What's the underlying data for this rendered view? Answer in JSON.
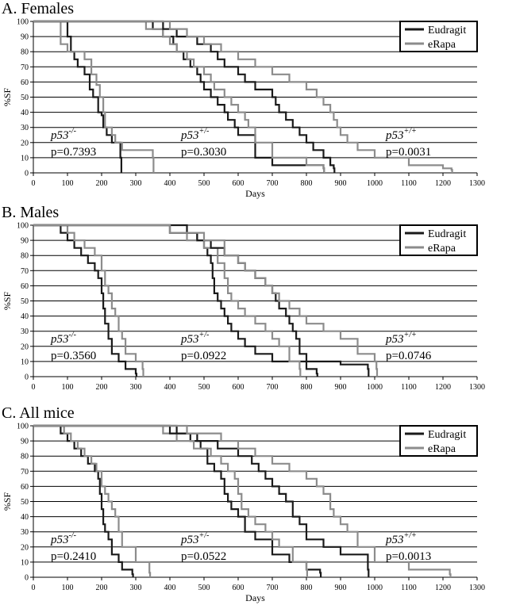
{
  "chart_data": [
    {
      "type": "line",
      "title": "A. Females",
      "xlabel": "Days",
      "ylabel": "%SF",
      "xlim": [
        0,
        1300
      ],
      "ylim": [
        0,
        100
      ],
      "xticks": [
        0,
        100,
        200,
        300,
        400,
        500,
        600,
        700,
        800,
        900,
        1000,
        1100,
        1200,
        1300
      ],
      "yticks": [
        0,
        10,
        20,
        30,
        40,
        50,
        60,
        70,
        80,
        90,
        100
      ],
      "grid": "horizontal",
      "legend_position": "top-right",
      "legend": [
        {
          "name": "Eudragit",
          "color": "#1a1a1a"
        },
        {
          "name": "eRapa",
          "color": "#8c8c8c"
        }
      ],
      "annotations": [
        {
          "genotype": "p53",
          "sup": "-/-",
          "pvalue": "p=0.7393"
        },
        {
          "genotype": "p53",
          "sup": "+/-",
          "pvalue": "p=0.3030"
        },
        {
          "genotype": "p53",
          "sup": "+/+",
          "pvalue": "p=0.0031"
        }
      ],
      "series": [
        {
          "name": "Eudragit",
          "group": "p53-/-",
          "x": [
            0,
            90,
            100,
            110,
            120,
            130,
            150,
            165,
            175,
            190,
            200,
            205,
            215,
            230,
            255,
            258
          ],
          "y": [
            100,
            100,
            90,
            80,
            75,
            70,
            65,
            55,
            50,
            40,
            38,
            30,
            25,
            20,
            10,
            0
          ]
        },
        {
          "name": "eRapa",
          "group": "p53-/-",
          "x": [
            0,
            70,
            80,
            100,
            150,
            170,
            185,
            195,
            205,
            210,
            230,
            240,
            260,
            300,
            350,
            352
          ],
          "y": [
            100,
            100,
            85,
            80,
            75,
            65,
            58,
            50,
            40,
            30,
            25,
            20,
            15,
            15,
            10,
            0
          ]
        },
        {
          "name": "Eudragit",
          "group": "p53+/-",
          "x": [
            0,
            300,
            350,
            380,
            410,
            420,
            440,
            460,
            480,
            490,
            500,
            520,
            540,
            560,
            570,
            590,
            600,
            650,
            700,
            850,
            852
          ],
          "y": [
            100,
            100,
            95,
            90,
            85,
            80,
            75,
            70,
            65,
            60,
            55,
            50,
            45,
            40,
            35,
            30,
            25,
            10,
            5,
            3,
            0
          ]
        },
        {
          "name": "eRapa",
          "group": "p53+/-",
          "x": [
            0,
            280,
            330,
            380,
            400,
            420,
            450,
            470,
            500,
            520,
            530,
            560,
            580,
            600,
            620,
            630,
            650,
            700,
            800,
            850,
            852
          ],
          "y": [
            100,
            100,
            95,
            90,
            85,
            80,
            75,
            70,
            65,
            60,
            55,
            50,
            45,
            40,
            35,
            30,
            20,
            10,
            5,
            3,
            0
          ]
        },
        {
          "name": "Eudragit",
          "group": "p53+/+",
          "x": [
            0,
            300,
            380,
            420,
            480,
            520,
            540,
            560,
            600,
            620,
            650,
            700,
            710,
            720,
            740,
            760,
            780,
            800,
            820,
            850,
            870,
            880,
            882
          ],
          "y": [
            100,
            100,
            95,
            90,
            85,
            80,
            75,
            70,
            65,
            60,
            55,
            50,
            45,
            40,
            35,
            30,
            25,
            20,
            15,
            10,
            5,
            3,
            0
          ]
        },
        {
          "name": "eRapa",
          "group": "p53+/+",
          "x": [
            0,
            350,
            400,
            450,
            500,
            550,
            600,
            650,
            700,
            750,
            800,
            830,
            850,
            870,
            880,
            890,
            900,
            920,
            950,
            1000,
            1100,
            1200,
            1225,
            1227
          ],
          "y": [
            100,
            100,
            95,
            90,
            85,
            80,
            75,
            70,
            65,
            60,
            55,
            50,
            45,
            40,
            35,
            30,
            25,
            20,
            15,
            10,
            5,
            3,
            2,
            0
          ]
        }
      ]
    },
    {
      "type": "line",
      "title": "B. Males",
      "xlabel": "",
      "ylabel": "%SF",
      "xlim": [
        0,
        1300
      ],
      "ylim": [
        0,
        100
      ],
      "xticks": [
        0,
        100,
        200,
        300,
        400,
        500,
        600,
        700,
        800,
        900,
        1000,
        1100,
        1200,
        1300
      ],
      "yticks": [
        0,
        10,
        20,
        30,
        40,
        50,
        60,
        70,
        80,
        90,
        100
      ],
      "grid": "horizontal",
      "legend_position": "top-right",
      "legend": [
        {
          "name": "Eudragit",
          "color": "#1a1a1a"
        },
        {
          "name": "eRapa",
          "color": "#8c8c8c"
        }
      ],
      "annotations": [
        {
          "genotype": "p53",
          "sup": "-/-",
          "pvalue": "p=0.3560"
        },
        {
          "genotype": "p53",
          "sup": "+/-",
          "pvalue": "p=0.0922"
        },
        {
          "genotype": "p53",
          "sup": "+/+",
          "pvalue": "p=0.0746"
        }
      ],
      "series": [
        {
          "name": "Eudragit",
          "group": "p53-/-",
          "x": [
            0,
            50,
            80,
            100,
            120,
            140,
            160,
            180,
            190,
            200,
            205,
            210,
            220,
            230,
            250,
            270,
            300,
            302
          ],
          "y": [
            100,
            100,
            95,
            90,
            85,
            80,
            75,
            70,
            65,
            55,
            45,
            35,
            25,
            15,
            10,
            5,
            2,
            0
          ]
        },
        {
          "name": "eRapa",
          "group": "p53-/-",
          "x": [
            0,
            80,
            100,
            120,
            150,
            180,
            200,
            210,
            220,
            230,
            240,
            250,
            260,
            270,
            300,
            320,
            322
          ],
          "y": [
            100,
            100,
            95,
            90,
            85,
            80,
            70,
            60,
            55,
            45,
            40,
            30,
            25,
            15,
            10,
            5,
            0
          ]
        },
        {
          "name": "Eudragit",
          "group": "p53+/-",
          "x": [
            0,
            400,
            450,
            480,
            500,
            510,
            520,
            525,
            530,
            540,
            550,
            560,
            570,
            580,
            600,
            620,
            650,
            700,
            800,
            830,
            832
          ],
          "y": [
            100,
            100,
            95,
            90,
            85,
            80,
            75,
            65,
            55,
            50,
            45,
            40,
            35,
            30,
            25,
            20,
            15,
            10,
            5,
            2,
            0
          ]
        },
        {
          "name": "eRapa",
          "group": "p53+/-",
          "x": [
            0,
            350,
            400,
            450,
            500,
            540,
            560,
            570,
            580,
            600,
            620,
            650,
            680,
            700,
            720,
            750,
            780,
            782
          ],
          "y": [
            100,
            100,
            95,
            90,
            85,
            75,
            65,
            55,
            50,
            45,
            40,
            35,
            30,
            25,
            20,
            10,
            5,
            0
          ]
        },
        {
          "name": "Eudragit",
          "group": "p53+/+",
          "x": [
            0,
            80,
            400,
            480,
            520,
            560,
            600,
            620,
            650,
            680,
            700,
            710,
            720,
            740,
            750,
            760,
            770,
            780,
            800,
            900,
            980,
            982
          ],
          "y": [
            100,
            100,
            95,
            90,
            85,
            80,
            75,
            70,
            65,
            60,
            55,
            50,
            45,
            40,
            35,
            30,
            25,
            15,
            10,
            8,
            5,
            0
          ]
        },
        {
          "name": "eRapa",
          "group": "p53+/+",
          "x": [
            0,
            300,
            400,
            500,
            560,
            600,
            620,
            650,
            680,
            700,
            720,
            750,
            780,
            800,
            850,
            900,
            950,
            1000,
            1005,
            1007
          ],
          "y": [
            100,
            100,
            95,
            90,
            80,
            75,
            70,
            65,
            60,
            55,
            50,
            45,
            40,
            35,
            30,
            25,
            15,
            10,
            5,
            0
          ]
        }
      ]
    },
    {
      "type": "line",
      "title": "C. All mice",
      "xlabel": "Days",
      "ylabel": "%SF",
      "xlim": [
        0,
        1300
      ],
      "ylim": [
        0,
        100
      ],
      "xticks": [
        0,
        100,
        200,
        300,
        400,
        500,
        600,
        700,
        800,
        900,
        1000,
        1100,
        1200,
        1300
      ],
      "yticks": [
        0,
        10,
        20,
        30,
        40,
        50,
        60,
        70,
        80,
        90,
        100
      ],
      "grid": "horizontal",
      "legend_position": "top-right",
      "legend": [
        {
          "name": "Eudragit",
          "color": "#1a1a1a"
        },
        {
          "name": "eRapa",
          "color": "#8c8c8c"
        }
      ],
      "annotations": [
        {
          "genotype": "p53",
          "sup": "-/-",
          "pvalue": "p=0.2410"
        },
        {
          "genotype": "p53",
          "sup": "+/-",
          "pvalue": "p=0.0522"
        },
        {
          "genotype": "p53",
          "sup": "+/+",
          "pvalue": "p=0.0013"
        }
      ],
      "series": [
        {
          "name": "Eudragit",
          "group": "p53-/-",
          "x": [
            0,
            60,
            80,
            100,
            120,
            140,
            160,
            180,
            190,
            195,
            200,
            205,
            210,
            220,
            230,
            250,
            260,
            290,
            292
          ],
          "y": [
            100,
            100,
            95,
            90,
            85,
            80,
            75,
            70,
            65,
            55,
            45,
            35,
            30,
            25,
            15,
            10,
            5,
            2,
            0
          ]
        },
        {
          "name": "eRapa",
          "group": "p53-/-",
          "x": [
            0,
            70,
            90,
            110,
            130,
            150,
            170,
            185,
            200,
            210,
            220,
            230,
            240,
            250,
            260,
            300,
            340,
            342
          ],
          "y": [
            100,
            100,
            95,
            90,
            85,
            80,
            75,
            70,
            60,
            55,
            50,
            45,
            40,
            30,
            20,
            10,
            3,
            0
          ]
        },
        {
          "name": "Eudragit",
          "group": "p53+/-",
          "x": [
            0,
            380,
            420,
            460,
            490,
            510,
            530,
            550,
            560,
            570,
            580,
            600,
            620,
            650,
            700,
            750,
            800,
            840,
            842
          ],
          "y": [
            100,
            100,
            95,
            90,
            85,
            75,
            70,
            65,
            55,
            50,
            45,
            40,
            30,
            25,
            15,
            10,
            5,
            3,
            0
          ]
        },
        {
          "name": "eRapa",
          "group": "p53+/-",
          "x": [
            0,
            320,
            380,
            420,
            470,
            520,
            550,
            570,
            590,
            600,
            610,
            630,
            650,
            680,
            700,
            720,
            760,
            800,
            802
          ],
          "y": [
            100,
            100,
            95,
            90,
            85,
            80,
            75,
            70,
            65,
            55,
            45,
            40,
            35,
            30,
            25,
            20,
            10,
            5,
            0
          ]
        },
        {
          "name": "Eudragit",
          "group": "p53+/+",
          "x": [
            0,
            60,
            400,
            480,
            540,
            600,
            640,
            660,
            680,
            700,
            720,
            740,
            760,
            780,
            800,
            850,
            900,
            980,
            982
          ],
          "y": [
            100,
            100,
            95,
            90,
            85,
            80,
            75,
            70,
            65,
            60,
            55,
            50,
            40,
            35,
            25,
            20,
            15,
            5,
            0
          ]
        },
        {
          "name": "eRapa",
          "group": "p53+/+",
          "x": [
            0,
            300,
            450,
            550,
            600,
            650,
            700,
            750,
            800,
            830,
            850,
            870,
            880,
            900,
            920,
            950,
            1000,
            1100,
            1220,
            1222
          ],
          "y": [
            100,
            100,
            95,
            90,
            85,
            80,
            75,
            70,
            65,
            60,
            55,
            45,
            40,
            35,
            30,
            20,
            10,
            5,
            2,
            0
          ]
        }
      ]
    }
  ]
}
